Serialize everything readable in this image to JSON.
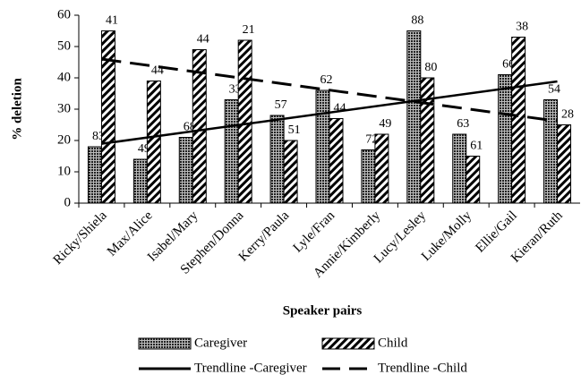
{
  "chart_data": {
    "type": "bar",
    "y_label": "% deletion",
    "x_label": "Speaker pairs",
    "categories": [
      "Ricky/Shiela",
      "Max/Alice",
      "Isabel/Mary",
      "Stephen/Donna",
      "Kerry/Paula",
      "Lyle/Fran",
      "Annie/Kimberly",
      "Lucy/Lesley",
      "Luke/Molly",
      "Ellie/Gail",
      "Kieran/Ruth"
    ],
    "series": [
      {
        "name": "Caregiver",
        "pattern": "dots",
        "values": [
          18,
          14,
          21,
          33,
          28,
          36,
          17,
          55,
          22,
          41,
          33
        ],
        "labels": [
          83,
          49,
          68,
          33,
          57,
          62,
          72,
          88,
          63,
          66,
          54
        ]
      },
      {
        "name": "Child",
        "pattern": "hatch",
        "values": [
          55,
          39,
          49,
          52,
          20,
          27,
          22,
          40,
          15,
          53,
          25
        ],
        "labels": [
          41,
          44,
          44,
          21,
          51,
          44,
          49,
          80,
          61,
          38,
          28
        ]
      }
    ],
    "trendlines": [
      {
        "name": "Trendline -Caregiver",
        "of": 0,
        "dashed": false
      },
      {
        "name": "Trendline -Child",
        "of": 1,
        "dashed": true
      }
    ],
    "ylim": [
      0,
      60
    ],
    "yticks": [
      0,
      10,
      20,
      30,
      40,
      50,
      60
    ]
  }
}
